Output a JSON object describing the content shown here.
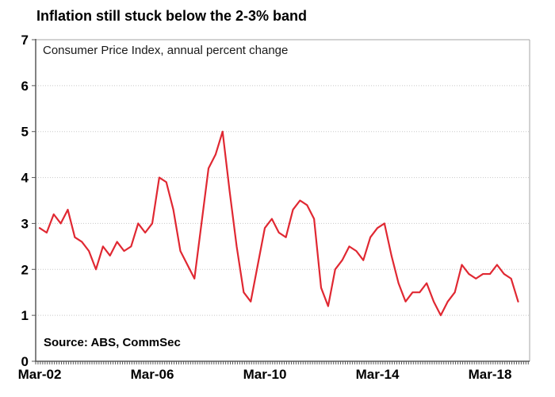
{
  "chart_data": {
    "type": "line",
    "title": "Inflation still stuck below the 2-3% band",
    "subtitle": "Consumer Price Index, annual percent change",
    "source": "Source: ABS, CommSec",
    "legend": "none",
    "grid": "horizontal-dotted",
    "line_color": "#e02832",
    "grid_color": "#c8c8c8",
    "axis_color": "#595959",
    "ylim": [
      0,
      7
    ],
    "y_ticks": [
      0,
      1,
      2,
      3,
      4,
      5,
      6,
      7
    ],
    "x_tick_labels": [
      {
        "label": "Mar-02",
        "index": 0
      },
      {
        "label": "Mar-06",
        "index": 16
      },
      {
        "label": "Mar-10",
        "index": 32
      },
      {
        "label": "Mar-14",
        "index": 48
      },
      {
        "label": "Mar-18",
        "index": 64
      }
    ],
    "categories": [
      "Mar-02",
      "Jun-02",
      "Sep-02",
      "Dec-02",
      "Mar-03",
      "Jun-03",
      "Sep-03",
      "Dec-03",
      "Mar-04",
      "Jun-04",
      "Sep-04",
      "Dec-04",
      "Mar-05",
      "Jun-05",
      "Sep-05",
      "Dec-05",
      "Mar-06",
      "Jun-06",
      "Sep-06",
      "Dec-06",
      "Mar-07",
      "Jun-07",
      "Sep-07",
      "Dec-07",
      "Mar-08",
      "Jun-08",
      "Sep-08",
      "Dec-08",
      "Mar-09",
      "Jun-09",
      "Sep-09",
      "Dec-09",
      "Mar-10",
      "Jun-10",
      "Sep-10",
      "Dec-10",
      "Mar-11",
      "Jun-11",
      "Sep-11",
      "Dec-11",
      "Mar-12",
      "Jun-12",
      "Sep-12",
      "Dec-12",
      "Mar-13",
      "Jun-13",
      "Sep-13",
      "Dec-13",
      "Mar-14",
      "Jun-14",
      "Sep-14",
      "Dec-14",
      "Mar-15",
      "Jun-15",
      "Sep-15",
      "Dec-15",
      "Mar-16",
      "Jun-16",
      "Sep-16",
      "Dec-16",
      "Mar-17",
      "Jun-17",
      "Sep-17",
      "Dec-17",
      "Mar-18",
      "Jun-18",
      "Sep-18",
      "Dec-18",
      "Mar-19"
    ],
    "series": [
      {
        "name": "Consumer Price Index, annual percent change",
        "values": [
          2.9,
          2.8,
          3.2,
          3.0,
          3.3,
          2.7,
          2.6,
          2.4,
          2.0,
          2.5,
          2.3,
          2.6,
          2.4,
          2.5,
          3.0,
          2.8,
          3.0,
          4.0,
          3.9,
          3.3,
          2.4,
          2.1,
          1.8,
          3.0,
          4.2,
          4.5,
          5.0,
          3.7,
          2.5,
          1.5,
          1.3,
          2.1,
          2.9,
          3.1,
          2.8,
          2.7,
          3.3,
          3.5,
          3.4,
          3.1,
          1.6,
          1.2,
          2.0,
          2.2,
          2.5,
          2.4,
          2.2,
          2.7,
          2.9,
          3.0,
          2.3,
          1.7,
          1.3,
          1.5,
          1.5,
          1.7,
          1.3,
          1.0,
          1.3,
          1.5,
          2.1,
          1.9,
          1.8,
          1.9,
          1.9,
          2.1,
          1.9,
          1.8,
          1.3
        ]
      }
    ]
  }
}
